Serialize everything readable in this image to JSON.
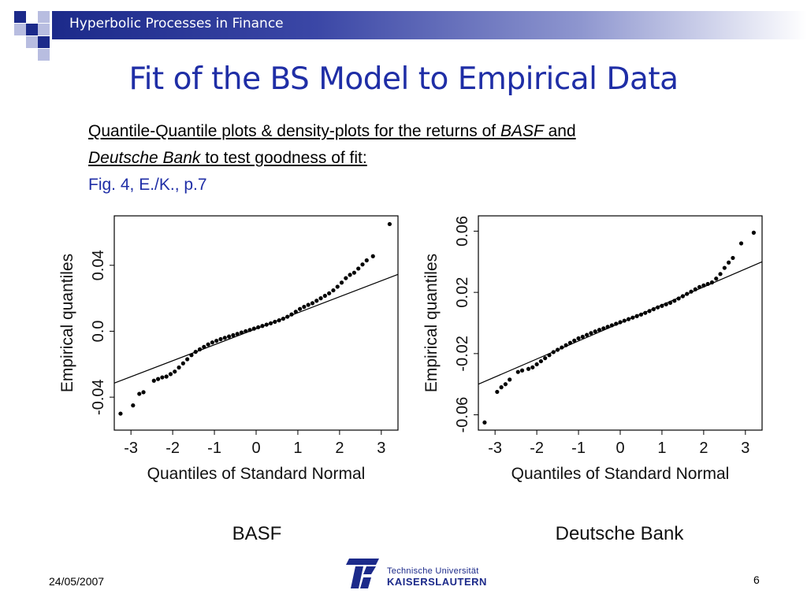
{
  "header": {
    "title": "Hyperbolic Processes in Finance"
  },
  "slide": {
    "title": "Fit of the BS Model to Empirical Data",
    "desc_part1": "Quantile-Quantile plots  & density-plots for the returns of ",
    "desc_basf": "BASF",
    "desc_and": " and",
    "desc_db": "Deutsche Bank",
    "desc_part2": " to test goodness of fit:",
    "fig_ref": "Fig. 4, E./K., p.7"
  },
  "footer": {
    "date": "24/05/2007",
    "page": "6",
    "logo_line1": "Technische Universität",
    "logo_line2": "KAISERSLAUTERN"
  },
  "chart_data": [
    {
      "type": "scatter",
      "caption": "BASF",
      "xlabel": "Quantiles of Standard Normal",
      "ylabel": "Empirical quantiles",
      "xlim": [
        -3.4,
        3.4
      ],
      "ylim": [
        -0.06,
        0.07
      ],
      "x_ticks": [
        -3,
        -2,
        -1,
        0,
        1,
        2,
        3
      ],
      "y_ticks": [
        -0.04,
        0.0,
        0.04
      ],
      "y_tick_labels": [
        "-0.04",
        "0.0",
        "0.04"
      ],
      "reference_line": {
        "x": [
          -3.4,
          3.4
        ],
        "y": [
          -0.0315,
          0.0345
        ]
      },
      "x": [
        -3.25,
        -2.95,
        -2.8,
        -2.7,
        -2.45,
        -2.35,
        -2.25,
        -2.15,
        -2.05,
        -1.95,
        -1.85,
        -1.75,
        -1.65,
        -1.55,
        -1.45,
        -1.35,
        -1.25,
        -1.15,
        -1.05,
        -0.95,
        -0.85,
        -0.75,
        -0.65,
        -0.55,
        -0.45,
        -0.35,
        -0.25,
        -0.15,
        -0.05,
        0.05,
        0.15,
        0.25,
        0.35,
        0.45,
        0.55,
        0.65,
        0.75,
        0.85,
        0.95,
        1.05,
        1.15,
        1.25,
        1.35,
        1.45,
        1.55,
        1.65,
        1.75,
        1.85,
        1.95,
        2.05,
        2.15,
        2.25,
        2.35,
        2.45,
        2.55,
        2.65,
        2.8,
        3.2
      ],
      "y": [
        -0.05,
        -0.045,
        -0.038,
        -0.037,
        -0.03,
        -0.029,
        -0.028,
        -0.0275,
        -0.026,
        -0.0245,
        -0.022,
        -0.0195,
        -0.017,
        -0.0145,
        -0.0125,
        -0.011,
        -0.0095,
        -0.008,
        -0.0068,
        -0.0058,
        -0.0048,
        -0.004,
        -0.0032,
        -0.0024,
        -0.0016,
        -0.0008,
        0.0,
        0.0008,
        0.0016,
        0.0024,
        0.0032,
        0.004,
        0.0048,
        0.0057,
        0.0066,
        0.0076,
        0.0088,
        0.0102,
        0.0118,
        0.0135,
        0.0148,
        0.016,
        0.017,
        0.0185,
        0.02,
        0.0215,
        0.023,
        0.0248,
        0.027,
        0.0295,
        0.0322,
        0.0342,
        0.0355,
        0.038,
        0.0405,
        0.043,
        0.0455,
        0.065
      ]
    },
    {
      "type": "scatter",
      "caption": "Deutsche Bank",
      "xlabel": "Quantiles of Standard Normal",
      "ylabel": "Empirical quantiles",
      "xlim": [
        -3.4,
        3.4
      ],
      "ylim": [
        -0.07,
        0.07
      ],
      "x_ticks": [
        -3,
        -2,
        -1,
        0,
        1,
        2,
        3
      ],
      "y_ticks": [
        -0.06,
        -0.02,
        0.02,
        0.06
      ],
      "y_tick_labels": [
        "-0.06",
        "-0.02",
        "0.02",
        "0.06"
      ],
      "reference_line": {
        "x": [
          -3.4,
          3.4
        ],
        "y": [
          -0.04,
          0.04
        ]
      },
      "x": [
        -3.25,
        -2.95,
        -2.85,
        -2.75,
        -2.65,
        -2.45,
        -2.35,
        -2.2,
        -2.1,
        -2.0,
        -1.9,
        -1.8,
        -1.7,
        -1.6,
        -1.5,
        -1.4,
        -1.3,
        -1.2,
        -1.1,
        -1.0,
        -0.9,
        -0.8,
        -0.7,
        -0.6,
        -0.5,
        -0.4,
        -0.3,
        -0.2,
        -0.1,
        0.0,
        0.1,
        0.2,
        0.3,
        0.4,
        0.5,
        0.6,
        0.7,
        0.8,
        0.9,
        1.0,
        1.1,
        1.2,
        1.3,
        1.4,
        1.5,
        1.6,
        1.7,
        1.8,
        1.9,
        2.0,
        2.1,
        2.2,
        2.3,
        2.4,
        2.5,
        2.6,
        2.7,
        2.9,
        3.2
      ],
      "y": [
        -0.065,
        -0.045,
        -0.042,
        -0.04,
        -0.037,
        -0.032,
        -0.031,
        -0.03,
        -0.029,
        -0.027,
        -0.025,
        -0.023,
        -0.021,
        -0.019,
        -0.0175,
        -0.016,
        -0.0145,
        -0.013,
        -0.0115,
        -0.01,
        -0.009,
        -0.0078,
        -0.0066,
        -0.0055,
        -0.0045,
        -0.0035,
        -0.0025,
        -0.0015,
        -0.0005,
        0.0005,
        0.0015,
        0.0025,
        0.0035,
        0.0045,
        0.0055,
        0.0066,
        0.0078,
        0.009,
        0.0102,
        0.0112,
        0.0122,
        0.0132,
        0.0145,
        0.016,
        0.0175,
        0.019,
        0.0205,
        0.022,
        0.0235,
        0.0245,
        0.0255,
        0.0265,
        0.029,
        0.032,
        0.036,
        0.0395,
        0.0425,
        0.052,
        0.059
      ]
    }
  ]
}
